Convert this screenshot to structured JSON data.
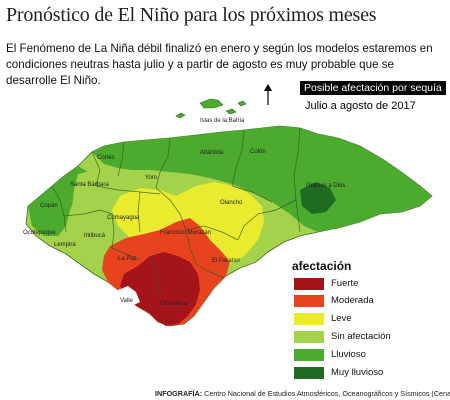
{
  "header": {
    "title": "Pronóstico de El Niño para los próximos meses",
    "intro": "El Fenómeno de La Niña débil finalizó en enero y según los modelos estaremos en condiciones neutras hasta julio y a partir de agosto es muy probable que se desarrolle El Niño."
  },
  "map": {
    "callout": "Posible afectación por sequía",
    "period": "Julio a agosto de 2017",
    "places": {
      "bahia": "Islas de la Bahía",
      "atlantida": "Atlántida",
      "colon": "Colón",
      "gracias": "Gracias a Dios",
      "cortes": "Cortés",
      "yoro": "Yoro",
      "santa_barbara": "Santa Bárbara",
      "copan": "Copán",
      "ocotepeque": "Ocotepeque",
      "lempira": "Lempira",
      "intibuca": "Intibucá",
      "comayagua": "Comayagua",
      "francisco": "Francisco Morazán",
      "olancho": "Olancho",
      "la_paz": "La Paz",
      "el_paraiso": "El Paraíso",
      "choluteca": "Choluteca",
      "valle": "Valle"
    }
  },
  "legend": {
    "title": "afectación",
    "items": [
      {
        "label": "Fuerte",
        "color": "#a5141a"
      },
      {
        "label": "Moderada",
        "color": "#e8431f"
      },
      {
        "label": "Leve",
        "color": "#eaeb2e"
      },
      {
        "label": "Sin afectación",
        "color": "#a4d24a"
      },
      {
        "label": "Lluvioso",
        "color": "#4caa2e"
      },
      {
        "label": "Muy  lluvioso",
        "color": "#1f6b22"
      }
    ]
  },
  "footer": {
    "label": "INFOGRAFÍA:",
    "source": "Centro Nacional de Estudios Atmosféricos, Oceanográficos y Sísmicos (Cenaos)"
  }
}
